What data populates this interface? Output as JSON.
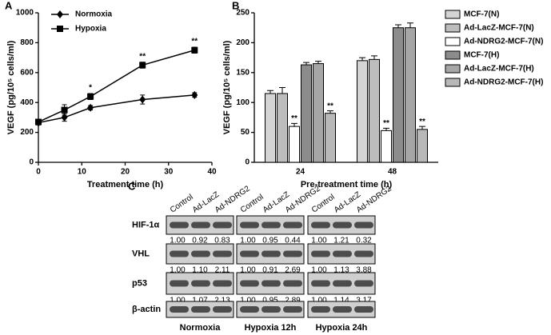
{
  "chart_data": [
    {
      "type": "line",
      "panel": "A",
      "xlabel": "Treatment time (h)",
      "ylabel": "VEGF (pg/10⁵ cells/ml)",
      "x": [
        0,
        6,
        12,
        24,
        36
      ],
      "series": [
        {
          "name": "Normoxia",
          "color": "#000000",
          "marker": "diamond",
          "values": [
            265,
            300,
            365,
            420,
            450
          ],
          "errors": [
            15,
            25,
            15,
            30,
            15
          ]
        },
        {
          "name": "Hypoxia",
          "color": "#000000",
          "marker": "square",
          "values": [
            270,
            350,
            440,
            650,
            750
          ],
          "errors": [
            15,
            35,
            20,
            20,
            20
          ]
        }
      ],
      "annotations": [
        {
          "text": "*",
          "x": 12
        },
        {
          "text": "**",
          "x": 24
        },
        {
          "text": "**",
          "x": 36
        }
      ],
      "xlim": [
        0,
        40
      ],
      "xticks": [
        0,
        10,
        20,
        30,
        40
      ],
      "ylim": [
        0,
        1000
      ],
      "yticks": [
        0,
        200,
        400,
        600,
        800,
        1000
      ],
      "grid": false,
      "legend": "top-left"
    },
    {
      "type": "bar",
      "panel": "B",
      "xlabel": "Pre-treatment time (h)",
      "ylabel": "VEGF (pg/10⁵ cells/ml)",
      "categories": [
        "24",
        "48"
      ],
      "series": [
        {
          "name": "MCF-7(N)",
          "color": "#d4d4d4",
          "values": [
            115,
            170
          ],
          "errors": [
            5,
            5
          ]
        },
        {
          "name": "Ad-LacZ-MCF-7(N)",
          "color": "#bdbdbd",
          "values": [
            115,
            172
          ],
          "errors": [
            10,
            6
          ]
        },
        {
          "name": "Ad-NDRG2-MCF-7(N)",
          "color": "#ffffff",
          "values": [
            60,
            53
          ],
          "errors": [
            5,
            4
          ]
        },
        {
          "name": "MCF-7(H)",
          "color": "#8c8c8c",
          "values": [
            163,
            225
          ],
          "errors": [
            4,
            5
          ]
        },
        {
          "name": "Ad-LacZ-MCF-7(H)",
          "color": "#a6a6a6",
          "values": [
            165,
            225
          ],
          "errors": [
            4,
            8
          ]
        },
        {
          "name": "Ad-NDRG2-MCF-7(H)",
          "color": "#b8b8b8",
          "values": [
            82,
            55
          ],
          "errors": [
            4,
            5
          ]
        }
      ],
      "annotations": [
        {
          "text": "**",
          "series": "Ad-NDRG2-MCF-7(N)"
        },
        {
          "text": "**",
          "series": "Ad-NDRG2-MCF-7(H)"
        }
      ],
      "ylim": [
        0,
        250
      ],
      "yticks": [
        0,
        50,
        100,
        150,
        200,
        250
      ],
      "grid": false,
      "legend": "right"
    }
  ],
  "blot": {
    "panel": "C",
    "lanes": [
      "Control",
      "Ad-LacZ",
      "Ad-NDRG2"
    ],
    "proteins": [
      "HIF-1α",
      "VHL",
      "p53",
      "β-actin"
    ],
    "groups": [
      {
        "name": "Normoxia",
        "rows": [
          [
            "1.00",
            "0.92",
            "0.83"
          ],
          [
            "1.00",
            "1.10",
            "2.11"
          ],
          [
            "1.00",
            "1.07",
            "2.13"
          ]
        ]
      },
      {
        "name": "Hypoxia 12h",
        "rows": [
          [
            "1.00",
            "0.95",
            "0.44"
          ],
          [
            "1.00",
            "0.91",
            "2.69"
          ],
          [
            "1.00",
            "0.95",
            "2.89"
          ]
        ]
      },
      {
        "name": "Hypoxia 24h",
        "rows": [
          [
            "1.00",
            "1.21",
            "0.32"
          ],
          [
            "1.00",
            "1.13",
            "3.88"
          ],
          [
            "1.00",
            "1.14",
            "3.17"
          ]
        ]
      }
    ]
  }
}
